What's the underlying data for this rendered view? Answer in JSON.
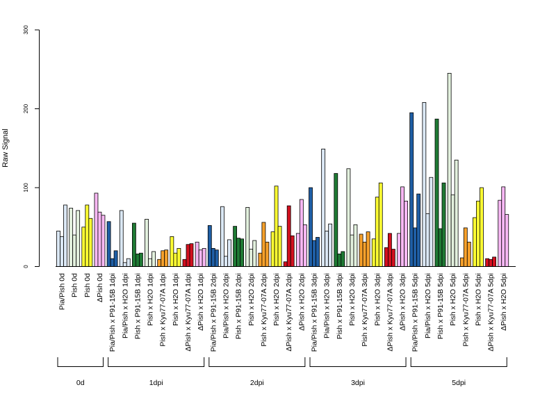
{
  "chart_data": {
    "type": "bar",
    "ylabel": "Raw Signal",
    "ylim": [
      0,
      300
    ],
    "yticks": [
      0,
      100,
      200,
      300
    ],
    "grid": false,
    "palette": {
      "blue": "#1f5fa6",
      "light_blue": "#dbe8f5",
      "green": "#1f7a34",
      "light_green": "#e3f1de",
      "yellow": "#ffff33",
      "orange": "#f7a12b",
      "red": "#d3101f",
      "pink": "#f8b8f4"
    },
    "categories": [
      {
        "label": "Pia/Pish 0d",
        "color": "light_blue",
        "values": [
          45,
          38,
          78
        ]
      },
      {
        "label": "Pish 0d",
        "color": "light_green",
        "values": [
          74,
          40,
          71
        ]
      },
      {
        "label": "Pish 0d",
        "color": "yellow",
        "values": [
          50,
          78,
          61
        ]
      },
      {
        "label": "ΔPish 0d",
        "color": "pink",
        "values": [
          93,
          69,
          65
        ]
      },
      {
        "label": "Pia/Pish x P91-15B 1dpi",
        "color": "blue",
        "values": [
          57,
          10,
          20
        ]
      },
      {
        "label": "Pia/Pish x H2O 1dpi",
        "color": "light_blue",
        "values": [
          71,
          5,
          10
        ]
      },
      {
        "label": "Pish x P91-15B 1dpi",
        "color": "green",
        "values": [
          55,
          16,
          17
        ]
      },
      {
        "label": "Pish x H2O 1dpi",
        "color": "light_green",
        "values": [
          60,
          10,
          19
        ]
      },
      {
        "label": "Pish x Kyu77-07A 1dpi",
        "color": "orange",
        "values": [
          9,
          20,
          21
        ]
      },
      {
        "label": "Pish x H2O 1dpi",
        "color": "yellow",
        "values": [
          38,
          17,
          23
        ]
      },
      {
        "label": "ΔPish x Kyu77-07A 1dpi",
        "color": "red",
        "values": [
          9,
          28,
          29
        ]
      },
      {
        "label": "ΔPish x H2O 1dpi",
        "color": "pink",
        "values": [
          31,
          21,
          23
        ]
      },
      {
        "label": "Pia/Pish x P91-15B 2dpi",
        "color": "blue",
        "values": [
          52,
          23,
          21
        ]
      },
      {
        "label": "Pia/Pish x H2O 2dpi",
        "color": "light_blue",
        "values": [
          76,
          13,
          34
        ]
      },
      {
        "label": "Pish x P91-15B 2dpi",
        "color": "green",
        "values": [
          51,
          36,
          35
        ]
      },
      {
        "label": "Pish x H2O 2dpi",
        "color": "light_green",
        "values": [
          75,
          22,
          33
        ]
      },
      {
        "label": "Pish x Kyu77-07A 2dpi",
        "color": "orange",
        "values": [
          17,
          56,
          31
        ]
      },
      {
        "label": "Pish x H2O 2dpi",
        "color": "yellow",
        "values": [
          44,
          102,
          51
        ]
      },
      {
        "label": "ΔPish x Kyu77-07A 2dpi",
        "color": "red",
        "values": [
          6,
          77,
          39
        ]
      },
      {
        "label": "ΔPish x H2O 2dpi",
        "color": "pink",
        "values": [
          42,
          85,
          53
        ]
      },
      {
        "label": "Pia/Pish x P91-15B 3dpi",
        "color": "blue",
        "values": [
          100,
          33,
          37
        ]
      },
      {
        "label": "Pia/Pish x H2O 3dpi",
        "color": "light_blue",
        "values": [
          149,
          45,
          54
        ]
      },
      {
        "label": "Pish x P91-15B 3dpi",
        "color": "green",
        "values": [
          118,
          16,
          19
        ]
      },
      {
        "label": "Pish x H2O 3dpi",
        "color": "light_green",
        "values": [
          124,
          40,
          53
        ]
      },
      {
        "label": "Pish x Kyu77-07A 3dpi",
        "color": "orange",
        "values": [
          41,
          31,
          44
        ]
      },
      {
        "label": "Pish x H2O 3dpi",
        "color": "yellow",
        "values": [
          35,
          88,
          106
        ]
      },
      {
        "label": "ΔPish x Kyu77-07A 3dpi",
        "color": "red",
        "values": [
          24,
          42,
          22
        ]
      },
      {
        "label": "ΔPish x H2O 3dpi",
        "color": "pink",
        "values": [
          42,
          101,
          83
        ]
      },
      {
        "label": "Pia/Pish x P91-15B 5dpi",
        "color": "blue",
        "values": [
          195,
          49,
          92
        ]
      },
      {
        "label": "Pia/Pish x H2O 5dpi",
        "color": "light_blue",
        "values": [
          208,
          67,
          113
        ]
      },
      {
        "label": "Pish x P91-15B 5dpi",
        "color": "green",
        "values": [
          187,
          48,
          106
        ]
      },
      {
        "label": "Pish x H2O 5dpi",
        "color": "light_green",
        "values": [
          245,
          91,
          135
        ]
      },
      {
        "label": "Pish x Kyu77-07A 5dpi",
        "color": "orange",
        "values": [
          11,
          49,
          31
        ]
      },
      {
        "label": "Pish x H2O 5dpi",
        "color": "yellow",
        "values": [
          62,
          83,
          100
        ]
      },
      {
        "label": "ΔPish x Kyu77-07A 5dpi",
        "color": "red",
        "values": [
          10,
          9,
          12
        ]
      },
      {
        "label": "ΔPish x H2O 5dpi",
        "color": "pink",
        "values": [
          84,
          101,
          66
        ]
      }
    ],
    "groups": [
      {
        "label": "0d",
        "count": 4
      },
      {
        "label": "1dpi",
        "count": 8
      },
      {
        "label": "2dpi",
        "count": 8
      },
      {
        "label": "3dpi",
        "count": 8
      },
      {
        "label": "5dpi",
        "count": 8
      }
    ]
  }
}
